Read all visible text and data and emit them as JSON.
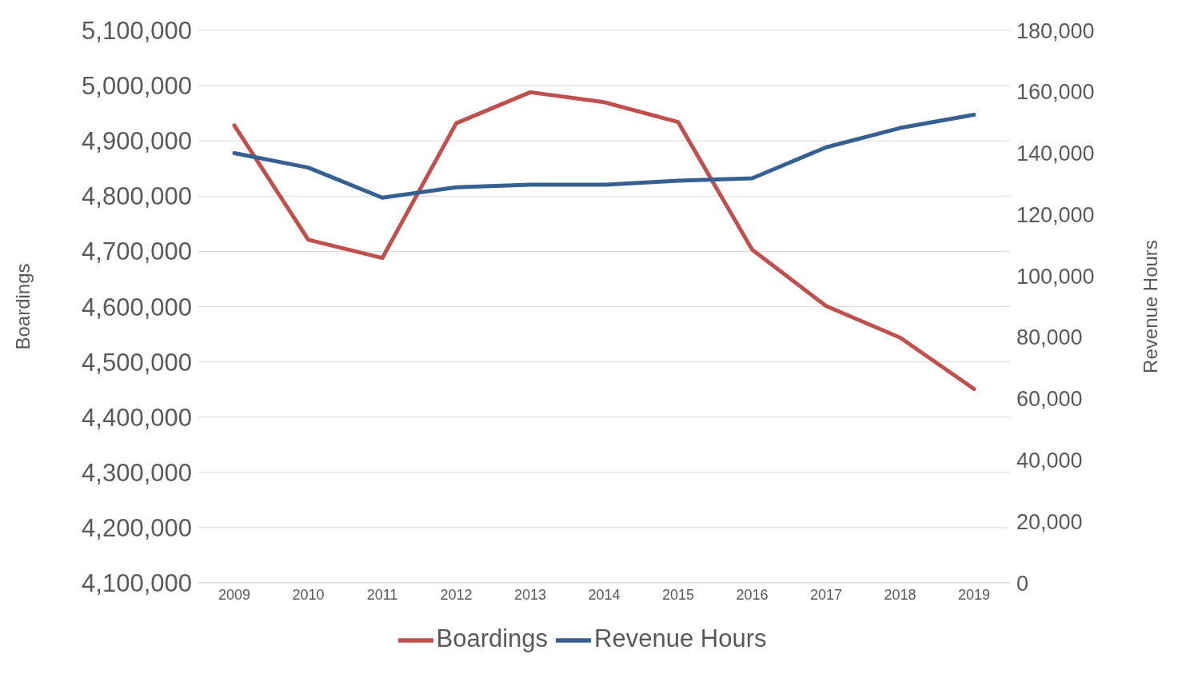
{
  "chart_data": {
    "type": "line",
    "ylabel": "Boardings",
    "y2label": "Revenue Hours",
    "categories": [
      "2009",
      "2010",
      "2011",
      "2012",
      "2013",
      "2014",
      "2015",
      "2016",
      "2017",
      "2018",
      "2019"
    ],
    "series": [
      {
        "name": "Boardings",
        "color": "#c0504d",
        "values": [
          4928000,
          4721000,
          4688000,
          4932000,
          4988000,
          4970000,
          4934000,
          4703000,
          4601000,
          4544000,
          4451000
        ]
      },
      {
        "name": "Revenue Hours",
        "color": "#376092",
        "axis": "y2",
        "values": [
          140000,
          135300,
          125500,
          128900,
          129700,
          129700,
          131000,
          131800,
          141900,
          148200,
          152500
        ]
      }
    ],
    "ylim": [
      4100000,
      5100000
    ],
    "yticks": [
      {
        "value": 4100000,
        "label": "4,100,000"
      },
      {
        "value": 4200000,
        "label": "4,200,000"
      },
      {
        "value": 4300000,
        "label": "4,300,000"
      },
      {
        "value": 4400000,
        "label": "4,400,000"
      },
      {
        "value": 4500000,
        "label": "4,500,000"
      },
      {
        "value": 4600000,
        "label": "4,600,000"
      },
      {
        "value": 4700000,
        "label": "4,700,000"
      },
      {
        "value": 4800000,
        "label": "4,800,000"
      },
      {
        "value": 4900000,
        "label": "4,900,000"
      },
      {
        "value": 5000000,
        "label": "5,000,000"
      },
      {
        "value": 5100000,
        "label": "5,100,000"
      }
    ],
    "y2lim": [
      0,
      180000
    ],
    "y2ticks": [
      0,
      {
        "value": 20000,
        "label": "20,000"
      },
      {
        "value": 40000,
        "label": "40,000"
      },
      {
        "value": 60000,
        "label": "60,000"
      },
      {
        "value": 80000,
        "label": "80,000"
      },
      {
        "value": 100000,
        "label": "100,000"
      },
      {
        "value": 120000,
        "label": "120,000"
      },
      {
        "value": 140000,
        "label": "140,000"
      },
      {
        "value": 160000,
        "label": "160,000"
      },
      {
        "value": 180000,
        "label": "180,000"
      }
    ],
    "grid": "y",
    "legend": "bottom",
    "marker": "none",
    "line_style": "solid"
  }
}
